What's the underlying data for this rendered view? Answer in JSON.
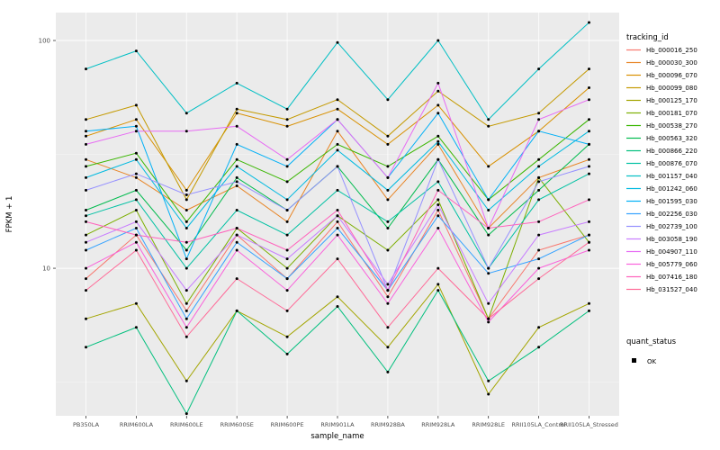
{
  "figure": {
    "xlabel": "sample_name",
    "ylabel": "FPKM + 1",
    "legend_title": "tracking_id",
    "quant_legend": {
      "title": "quant_status",
      "items": [
        "OK"
      ]
    }
  },
  "chart_data": {
    "type": "line",
    "yscale": "log10",
    "ylim": [
      2.25,
      132.6
    ],
    "y_ticks": [
      10,
      100
    ],
    "y_minor_ticks": [
      3.1623,
      31.623
    ],
    "panel_bg": "#EBEBEB",
    "grid_color": "#FFFFFF",
    "tick_label_color": "#4D4D4D",
    "point_color": "#000000",
    "legend_position": "right",
    "x_categories": [
      "PB350LA",
      "RRIM600LA",
      "RRIM600LE",
      "RRIM600SE",
      "RRIM600PE",
      "RRIM901LA",
      "RRIM928BA",
      "RRIM928LA",
      "RRIM928LE",
      "RRII105LA_Control",
      "RRII105LA_Stressed"
    ],
    "series": [
      {
        "name": "Hb_000016_250",
        "color": "#F8766D",
        "values": [
          9,
          14,
          6.5,
          14,
          9,
          16,
          7.5,
          18,
          6,
          12,
          14
        ]
      },
      {
        "name": "Hb_000030_300",
        "color": "#E88526",
        "values": [
          30,
          25,
          18,
          23,
          16,
          40,
          20,
          35,
          15,
          25,
          30
        ]
      },
      {
        "name": "Hb_000096_070",
        "color": "#D89000",
        "values": [
          38,
          45,
          22,
          48,
          42,
          50,
          35,
          52,
          28,
          40,
          62
        ]
      },
      {
        "name": "Hb_000099_080",
        "color": "#C49A00",
        "values": [
          45,
          52,
          20,
          50,
          45,
          55,
          38,
          60,
          42,
          48,
          75
        ]
      },
      {
        "name": "Hb_000125_170",
        "color": "#A3A500",
        "values": [
          6,
          7,
          3.2,
          6.5,
          5,
          7.5,
          4.5,
          8.5,
          2.8,
          5.5,
          7
        ]
      },
      {
        "name": "Hb_000181_070",
        "color": "#7CAE00",
        "values": [
          14,
          18,
          7,
          15,
          10,
          17,
          12,
          20,
          6,
          25,
          13
        ]
      },
      {
        "name": "Hb_000538_270",
        "color": "#39B600",
        "values": [
          28,
          32,
          16,
          30,
          24,
          35,
          28,
          38,
          20,
          30,
          45
        ]
      },
      {
        "name": "Hb_000563_320",
        "color": "#00BB4E",
        "values": [
          18,
          22,
          12,
          25,
          18,
          28,
          15,
          30,
          14,
          22,
          35
        ]
      },
      {
        "name": "Hb_000866_220",
        "color": "#00BF7D",
        "values": [
          4.5,
          5.5,
          2.3,
          6.5,
          4.2,
          6.8,
          3.5,
          8,
          3.2,
          4.5,
          6.5
        ]
      },
      {
        "name": "Hb_000876_070",
        "color": "#00C1A3",
        "values": [
          17,
          20,
          10,
          18,
          14,
          22,
          16,
          24,
          10,
          20,
          26
        ]
      },
      {
        "name": "Hb_001157_040",
        "color": "#00BFC4",
        "values": [
          75,
          90,
          48,
          65,
          50,
          98,
          55,
          100,
          45,
          75,
          120
        ]
      },
      {
        "name": "Hb_001242_060",
        "color": "#00BAE0",
        "values": [
          25,
          30,
          15,
          28,
          20,
          33,
          22,
          36,
          18,
          28,
          40
        ]
      },
      {
        "name": "Hb_001595_030",
        "color": "#00B0F6",
        "values": [
          40,
          42,
          11,
          35,
          28,
          45,
          25,
          48,
          20,
          40,
          35
        ]
      },
      {
        "name": "Hb_002256_030",
        "color": "#35A2FF",
        "values": [
          12,
          15,
          6,
          13,
          9,
          15,
          8,
          17,
          9.5,
          11,
          14
        ]
      },
      {
        "name": "Hb_002739_100",
        "color": "#9590FF",
        "values": [
          22,
          26,
          21,
          24,
          18,
          28,
          8,
          30,
          10,
          24,
          28
        ]
      },
      {
        "name": "Hb_003058_190",
        "color": "#C77CFF",
        "values": [
          13,
          16,
          8,
          14,
          11,
          17,
          8.5,
          19,
          7,
          14,
          16
        ]
      },
      {
        "name": "Hb_004907_110",
        "color": "#E76BF3",
        "values": [
          35,
          40,
          40,
          42,
          30,
          45,
          25,
          65,
          15,
          45,
          55
        ]
      },
      {
        "name": "Hb_005779_060",
        "color": "#FA62DB",
        "values": [
          10,
          13,
          5.5,
          12,
          8,
          14,
          7,
          15,
          5.8,
          10,
          12
        ]
      },
      {
        "name": "Hb_007416_180",
        "color": "#FF62BC",
        "values": [
          16,
          14,
          13,
          15,
          12,
          18,
          8,
          22,
          15,
          16,
          20
        ]
      },
      {
        "name": "Hb_031527_040",
        "color": "#FF6A98",
        "values": [
          8,
          12,
          5,
          9,
          6.5,
          11,
          5.5,
          10,
          6,
          9,
          13
        ]
      }
    ]
  }
}
